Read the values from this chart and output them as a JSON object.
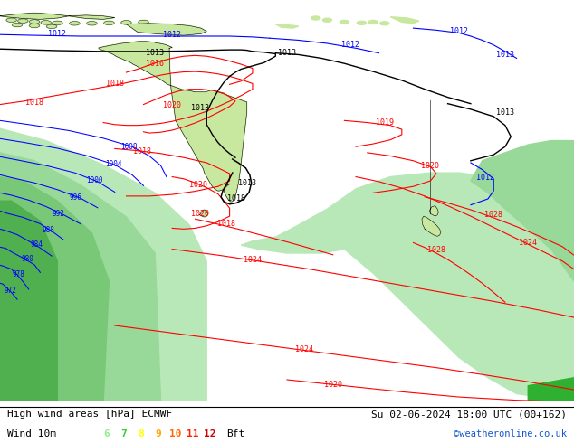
{
  "title_left": "High wind areas [hPa] ECMWF",
  "title_right": "Su 02-06-2024 18:00 UTC (00+162)",
  "subtitle_label": "Wind 10m",
  "bft_nums": [
    "6",
    "7",
    "8",
    "9",
    "10",
    "11",
    "12"
  ],
  "bft_colors": [
    "#90ee90",
    "#32cd32",
    "#ffff00",
    "#ffa500",
    "#ff6600",
    "#ff2200",
    "#cc0000"
  ],
  "credit": "©weatheronline.co.uk",
  "sea_color": "#dce8dc",
  "land_color": "#c8e8a0",
  "wind6_color": "#b0e8b0",
  "wind8_color": "#78d878",
  "wind10_color": "#40c840",
  "wind12_color": "#20a820",
  "footer_bg": "#ffffff",
  "fig_width": 6.34,
  "fig_height": 4.9,
  "dpi": 100
}
